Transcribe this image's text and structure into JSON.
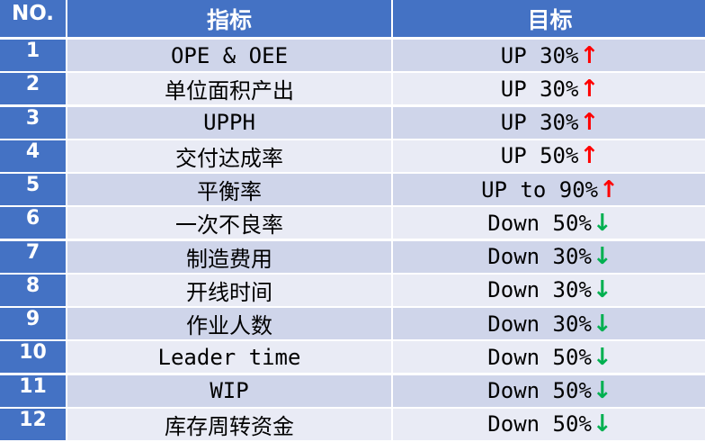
{
  "headers": {
    "no": "NO.",
    "metric": "指标",
    "target": "目标"
  },
  "colors": {
    "header": "#4472c4",
    "row_odd": "#cfd5ea",
    "row_even": "#e9ebf5",
    "up_arrow": "#ff0000",
    "down_arrow": "#00b050"
  },
  "rows": [
    {
      "no": "1",
      "metric": "OPE & OEE",
      "target": "UP 30%",
      "dir": "up"
    },
    {
      "no": "2",
      "metric": "单位面积产出",
      "target": "UP 30%",
      "dir": "up"
    },
    {
      "no": "3",
      "metric": "UPPH",
      "target": "UP 30%",
      "dir": "up"
    },
    {
      "no": "4",
      "metric": "交付达成率",
      "target": "UP 50%",
      "dir": "up"
    },
    {
      "no": "5",
      "metric": "平衡率",
      "target": "UP to 90%",
      "dir": "up"
    },
    {
      "no": "6",
      "metric": "一次不良率",
      "target": "Down 50%",
      "dir": "down"
    },
    {
      "no": "7",
      "metric": "制造费用",
      "target": "Down 30%",
      "dir": "down"
    },
    {
      "no": "8",
      "metric": "开线时间",
      "target": "Down 30%",
      "dir": "down"
    },
    {
      "no": "9",
      "metric": "作业人数",
      "target": "Down 30%",
      "dir": "down"
    },
    {
      "no": "10",
      "metric": "Leader time",
      "target": "Down 50%",
      "dir": "down"
    },
    {
      "no": "11",
      "metric": "WIP",
      "target": "Down 50%",
      "dir": "down"
    },
    {
      "no": "12",
      "metric": "库存周转资金",
      "target": "Down 50%",
      "dir": "down"
    }
  ]
}
